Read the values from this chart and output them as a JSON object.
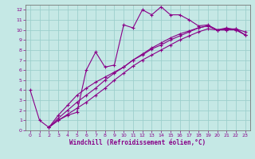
{
  "xlabel": "Windchill (Refroidissement éolien,°C)",
  "xlim": [
    -0.5,
    23.5
  ],
  "ylim": [
    0,
    12.5
  ],
  "xticks": [
    0,
    1,
    2,
    3,
    4,
    5,
    6,
    7,
    8,
    9,
    10,
    11,
    12,
    13,
    14,
    15,
    16,
    17,
    18,
    19,
    20,
    21,
    22,
    23
  ],
  "yticks": [
    0,
    1,
    2,
    3,
    4,
    5,
    6,
    7,
    8,
    9,
    10,
    11,
    12
  ],
  "bg_color": "#c5e8e5",
  "grid_color": "#9dcfcc",
  "line_color": "#880088",
  "spine_color": "#777777",
  "lines": [
    {
      "x": [
        0,
        1,
        2,
        3,
        4,
        5,
        6,
        7,
        8,
        9,
        10,
        11,
        12,
        13,
        14,
        15,
        16,
        17,
        18,
        19,
        20,
        21,
        22,
        23
      ],
      "y": [
        4,
        1,
        0.3,
        1.0,
        1.5,
        1.8,
        6.0,
        7.8,
        6.3,
        6.5,
        10.5,
        10.2,
        12.0,
        11.5,
        12.3,
        11.5,
        11.5,
        11.0,
        10.4,
        10.5,
        10.0,
        10.2,
        10.0,
        9.5
      ]
    },
    {
      "x": [
        2,
        3,
        4,
        5,
        6,
        7,
        8,
        9,
        10,
        11,
        12,
        13,
        14,
        15,
        16,
        17,
        18,
        19,
        20,
        21,
        22,
        23
      ],
      "y": [
        0.3,
        1.0,
        1.6,
        2.2,
        2.8,
        3.5,
        4.2,
        5.0,
        5.7,
        6.4,
        7.0,
        7.5,
        8.0,
        8.5,
        9.0,
        9.4,
        9.8,
        10.1,
        10.0,
        10.1,
        10.1,
        9.8
      ]
    },
    {
      "x": [
        2,
        3,
        4,
        5,
        6,
        7,
        8,
        9,
        10,
        11,
        12,
        13,
        14,
        15,
        16,
        17,
        18,
        19,
        20,
        21,
        22,
        23
      ],
      "y": [
        0.3,
        1.2,
        2.0,
        2.8,
        3.5,
        4.2,
        5.0,
        5.7,
        6.3,
        7.0,
        7.5,
        8.1,
        8.5,
        9.0,
        9.4,
        9.8,
        10.2,
        10.4,
        10.0,
        10.0,
        10.0,
        9.5
      ]
    },
    {
      "x": [
        2,
        3,
        4,
        5,
        6,
        7,
        8,
        9,
        10,
        11,
        12,
        13,
        14,
        15,
        16,
        17,
        18,
        19,
        20,
        21,
        22,
        23
      ],
      "y": [
        0.3,
        1.5,
        2.5,
        3.5,
        4.2,
        4.8,
        5.3,
        5.8,
        6.3,
        7.0,
        7.6,
        8.2,
        8.7,
        9.2,
        9.6,
        9.9,
        10.2,
        10.4,
        10.0,
        10.0,
        10.1,
        9.5
      ]
    }
  ],
  "tick_fontsize": 4.5,
  "xlabel_fontsize": 5.5
}
